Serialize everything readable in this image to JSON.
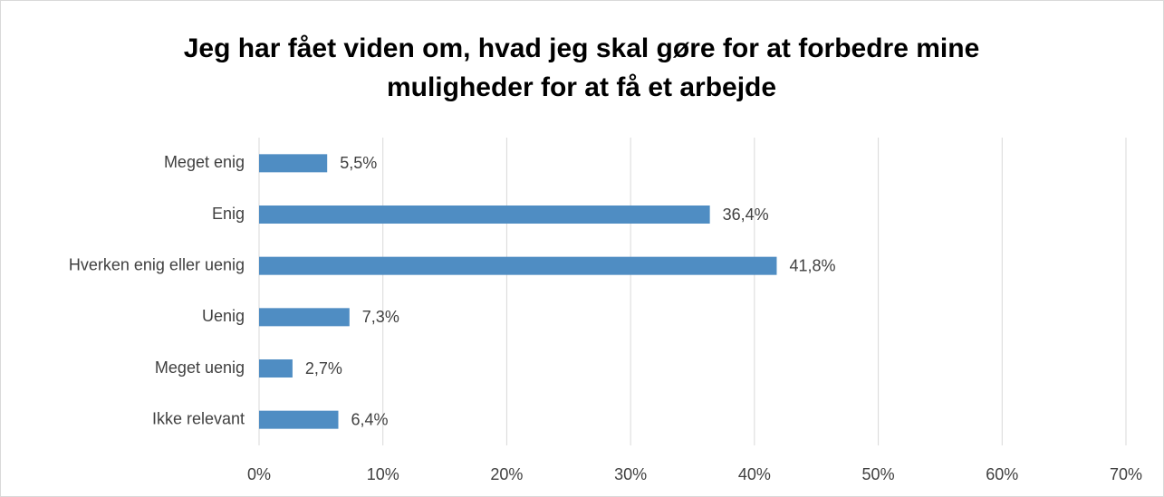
{
  "chart_data": {
    "type": "hbar",
    "title": "Jeg har fået viden om, hvad jeg skal gøre for at forbedre mine muligheder for at få et arbejde",
    "categories": [
      "Meget enig",
      "Enig",
      "Hverken enig eller uenig",
      "Uenig",
      "Meget uenig",
      "Ikke relevant"
    ],
    "values": [
      5.5,
      36.4,
      41.8,
      7.3,
      2.7,
      6.4
    ],
    "value_labels": [
      "5,5%",
      "36,4%",
      "41,8%",
      "7,3%",
      "2,7%",
      "6,4%"
    ],
    "color": "#4f8dc3",
    "xlim": [
      0,
      70
    ],
    "xticks": [
      {
        "value": 0,
        "label": "0%"
      },
      {
        "value": 10,
        "label": "10%"
      },
      {
        "value": 20,
        "label": "20%"
      },
      {
        "value": 30,
        "label": "30%"
      },
      {
        "value": 40,
        "label": "40%"
      },
      {
        "value": 50,
        "label": "50%"
      },
      {
        "value": 60,
        "label": "60%"
      },
      {
        "value": 70,
        "label": "70%"
      }
    ],
    "grid": true
  }
}
